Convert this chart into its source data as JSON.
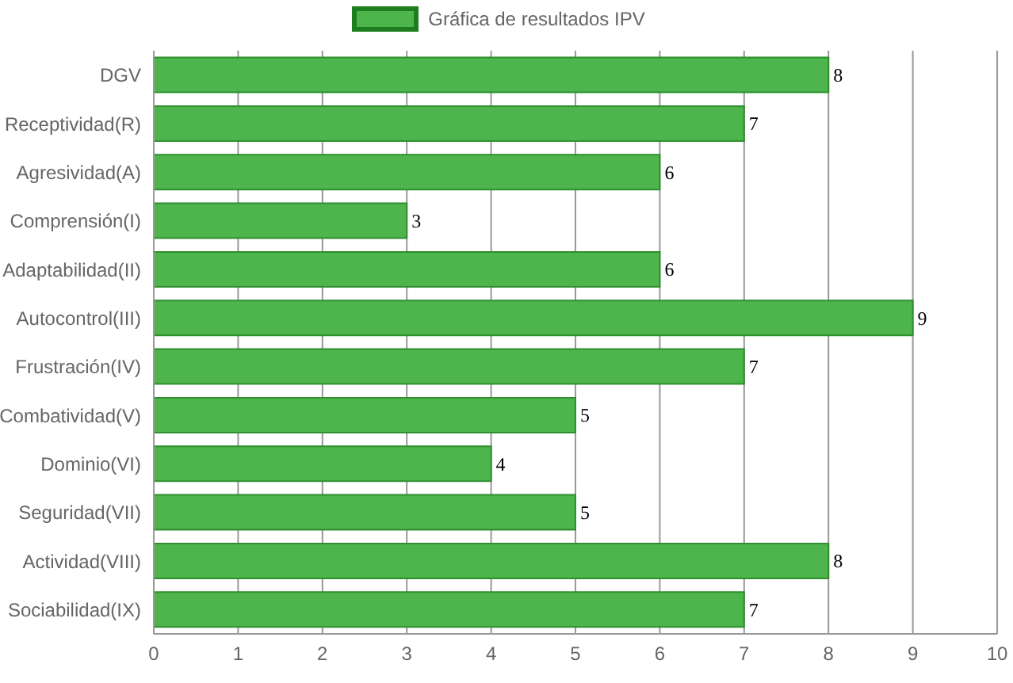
{
  "chart_data": {
    "type": "bar",
    "orientation": "horizontal",
    "categories": [
      "DGV",
      "Receptividad(R)",
      "Agresividad(A)",
      "Comprensión(I)",
      "Adaptabilidad(II)",
      "Autocontrol(III)",
      "Frustración(IV)",
      "Combatividad(V)",
      "Dominio(VI)",
      "Seguridad(VII)",
      "Actividad(VIII)",
      "Sociabilidad(IX)"
    ],
    "series": [
      {
        "name": "Gráfica de resultados IPV",
        "color": "#4db54c",
        "values": [
          8,
          7,
          6,
          3,
          6,
          9,
          7,
          5,
          4,
          5,
          8,
          7
        ]
      }
    ],
    "xlim": [
      0,
      10
    ],
    "xticks": [
      0,
      1,
      2,
      3,
      4,
      5,
      6,
      7,
      8,
      9,
      10
    ],
    "grid": "x",
    "legend": "top",
    "data_labels": true
  }
}
